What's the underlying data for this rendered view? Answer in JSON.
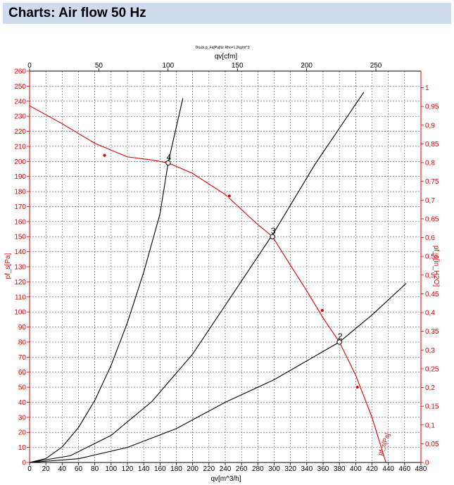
{
  "header": {
    "title": "Charts: Air flow 50 Hz"
  },
  "chart_data": {
    "type": "line",
    "subtitle": "Druck p_Fa[Pa]für Rho=1,2kg/m^3",
    "xlabel": "qv[m^3/h]",
    "x2label": "qv[cfm]",
    "ylabel": "pf_s[Pa]",
    "y2label": "pf_s[in_H2O]",
    "xlim": [
      0,
      480
    ],
    "x2lim": [
      0,
      282.5
    ],
    "ylim": [
      0,
      260
    ],
    "y2lim": [
      0,
      1.0442
    ],
    "grid": true,
    "x_ticks": [
      "0",
      "20",
      "40",
      "60",
      "80",
      "100",
      "120",
      "140",
      "160",
      "180",
      "200",
      "220",
      "240",
      "260",
      "280",
      "300",
      "320",
      "340",
      "360",
      "380",
      "400",
      "420",
      "440",
      "460",
      "480"
    ],
    "x2_ticks": [
      "0",
      "50",
      "100",
      "150",
      "200",
      "250"
    ],
    "y_ticks": [
      "0",
      "10",
      "20",
      "30",
      "40",
      "50",
      "60",
      "70",
      "80",
      "90",
      "100",
      "110",
      "120",
      "130",
      "140",
      "150",
      "160",
      "170",
      "180",
      "190",
      "200",
      "210",
      "220",
      "230",
      "240",
      "250",
      "260"
    ],
    "y2_ticks": [
      "0",
      "0,05",
      "0,1",
      "0,15",
      "0,2",
      "0,25",
      "0,3",
      "0,35",
      "0,4",
      "0,45",
      "0,5",
      "0,55",
      "0,6",
      "0,65",
      "0,7",
      "0,75",
      "0,8",
      "0,85",
      "0,9",
      "0,95",
      "1"
    ],
    "series": [
      {
        "name": "pf_s[Pa]",
        "color": "#e00000",
        "x": [
          0,
          40,
          80,
          120,
          150,
          170,
          200,
          240,
          280,
          298,
          320,
          340,
          360,
          380,
          400,
          420,
          437
        ],
        "y": [
          237,
          225,
          212,
          203,
          201,
          199,
          192,
          178,
          158,
          150,
          131,
          114,
          96,
          80,
          58,
          30,
          0
        ],
        "markers": {
          "x": [
            92,
            245,
            359,
            402
          ],
          "y": [
            204,
            177,
            101,
            50
          ]
        }
      }
    ],
    "system_curves": [
      {
        "id": "4",
        "color": "#000000",
        "x": [
          0,
          20,
          40,
          60,
          80,
          100,
          120,
          140,
          160,
          170,
          188
        ],
        "y": [
          0,
          2.6,
          10.3,
          23.2,
          41.3,
          64.5,
          92.9,
          126.4,
          165.1,
          199,
          242
        ]
      },
      {
        "id": "3",
        "color": "#000000",
        "x": [
          0,
          50,
          100,
          150,
          200,
          250,
          300,
          350,
          410
        ],
        "y": [
          0,
          4.5,
          18,
          40.5,
          72,
          112.5,
          153,
          198,
          246
        ]
      },
      {
        "id": "2",
        "color": "#000000",
        "x": [
          0,
          60,
          120,
          180,
          240,
          300,
          380,
          420,
          462
        ],
        "y": [
          0,
          2.5,
          10,
          22.5,
          40,
          55,
          80,
          98,
          119
        ]
      }
    ],
    "operating_points": [
      {
        "label": "4",
        "x": 170,
        "y": 199
      },
      {
        "label": "3",
        "x": 298,
        "y": 150
      },
      {
        "label": "2",
        "x": 380,
        "y": 80
      }
    ]
  }
}
